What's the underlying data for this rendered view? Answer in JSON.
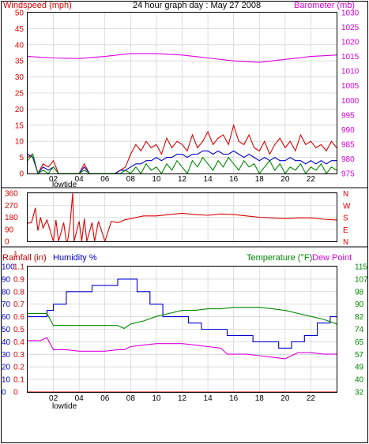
{
  "chart_data": [
    {
      "type": "line",
      "title": "24 hour graph day : May 27 2008",
      "left_axis_label": "Windspeed (mph)",
      "right_axis_label": "Barometer (mb)",
      "x_ticks": [
        "02",
        "04",
        "06",
        "08",
        "10",
        "12",
        "14",
        "16",
        "18",
        "20",
        "22"
      ],
      "x_annotation": "lowtide",
      "left_ylim": [
        0,
        50
      ],
      "left_ticks": [
        0,
        5,
        10,
        15,
        20,
        25,
        30,
        35,
        40,
        45,
        50
      ],
      "right_ylim": [
        975,
        1030
      ],
      "right_ticks": [
        975,
        980,
        985,
        990,
        995,
        1000,
        1005,
        1010,
        1015,
        1020,
        1025,
        1030
      ],
      "grid": true,
      "series": [
        {
          "name": "Barometer (mb)",
          "axis": "right",
          "color": "#dd00dd",
          "x": [
            0,
            2,
            4,
            6,
            8,
            10,
            12,
            14,
            16,
            18,
            20,
            22,
            24
          ],
          "values": [
            1015,
            1014.5,
            1014.3,
            1015,
            1016,
            1016,
            1015.5,
            1014.5,
            1013.5,
            1013,
            1014,
            1015,
            1015.5
          ]
        },
        {
          "name": "gust",
          "color": "#dd0000",
          "x": [
            0,
            0.4,
            0.8,
            1.2,
            1.6,
            2,
            2.4,
            2.8,
            3.2,
            3.6,
            4,
            4.4,
            4.8,
            5.2,
            5.6,
            6,
            6.4,
            6.8,
            7.2,
            7.6,
            8,
            8.4,
            8.8,
            9.2,
            9.6,
            10,
            10.4,
            10.8,
            11.2,
            11.6,
            12,
            12.4,
            12.8,
            13.2,
            13.6,
            14,
            14.4,
            14.8,
            15.2,
            15.6,
            16,
            16.4,
            16.8,
            17.2,
            17.6,
            18,
            18.4,
            18.8,
            19.2,
            19.6,
            20,
            20.4,
            20.8,
            21.2,
            21.6,
            22,
            22.4,
            22.8,
            23.2,
            23.6,
            24
          ],
          "values": [
            5,
            6,
            0,
            3,
            2,
            4,
            0,
            0,
            0,
            0,
            0,
            3,
            0,
            0,
            0,
            0,
            0,
            0,
            1,
            2,
            6,
            9,
            7,
            10,
            8,
            9,
            6,
            11,
            8,
            10,
            9,
            7,
            12,
            8,
            10,
            13,
            9,
            11,
            12,
            9,
            15,
            10,
            9,
            12,
            8,
            7,
            10,
            6,
            9,
            11,
            8,
            10,
            7,
            12,
            9,
            10,
            8,
            9,
            7,
            10,
            8
          ]
        },
        {
          "name": "wind",
          "color": "#0000cc",
          "x": [
            0,
            0.4,
            0.8,
            1.2,
            1.6,
            2,
            2.4,
            2.8,
            3.2,
            3.6,
            4,
            4.4,
            4.8,
            5.2,
            5.6,
            6,
            6.4,
            6.8,
            7.2,
            7.6,
            8,
            8.4,
            8.8,
            9.2,
            9.6,
            10,
            10.4,
            10.8,
            11.2,
            11.6,
            12,
            12.4,
            12.8,
            13.2,
            13.6,
            14,
            14.4,
            14.8,
            15.2,
            15.6,
            16,
            16.4,
            16.8,
            17.2,
            17.6,
            18,
            18.4,
            18.8,
            19.2,
            19.6,
            20,
            20.4,
            20.8,
            21.2,
            21.6,
            22,
            22.4,
            22.8,
            23.2,
            23.6,
            24
          ],
          "values": [
            6,
            5,
            0,
            2,
            1,
            2,
            0,
            0,
            0,
            0,
            0,
            2,
            0,
            0,
            0,
            0,
            0,
            0,
            1,
            1,
            2,
            3,
            3,
            4,
            4,
            5,
            4,
            5,
            5,
            6,
            6,
            5,
            6,
            6,
            7,
            7,
            6,
            7,
            6,
            6,
            7,
            6,
            5,
            6,
            5,
            4,
            5,
            4,
            5,
            4,
            4,
            5,
            4,
            4,
            3,
            4,
            3,
            4,
            3,
            4,
            4
          ]
        },
        {
          "name": "wind-min",
          "color": "#008800",
          "x": [
            0,
            0.4,
            0.8,
            1.2,
            1.6,
            2,
            2.4,
            2.8,
            3.2,
            3.6,
            4,
            4.4,
            4.8,
            5.2,
            5.6,
            6,
            6.4,
            6.8,
            7.2,
            7.6,
            8,
            8.4,
            8.8,
            9.2,
            9.6,
            10,
            10.4,
            10.8,
            11.2,
            11.6,
            12,
            12.4,
            12.8,
            13.2,
            13.6,
            14,
            14.4,
            14.8,
            15.2,
            15.6,
            16,
            16.4,
            16.8,
            17.2,
            17.6,
            18,
            18.4,
            18.8,
            19.2,
            19.6,
            20,
            20.4,
            20.8,
            21.2,
            21.6,
            22,
            22.4,
            22.8,
            23.2,
            23.6,
            24
          ],
          "values": [
            4,
            6,
            0,
            1,
            0,
            2,
            0,
            0,
            0,
            0,
            0,
            1,
            0,
            0,
            0,
            0,
            0,
            0,
            0,
            1,
            0,
            2,
            0,
            3,
            1,
            2,
            0,
            3,
            1,
            4,
            2,
            0,
            4,
            2,
            5,
            3,
            1,
            4,
            2,
            5,
            3,
            1,
            4,
            2,
            3,
            0,
            2,
            4,
            1,
            3,
            0,
            2,
            1,
            3,
            0,
            2,
            1,
            3,
            0,
            2,
            1
          ]
        }
      ]
    },
    {
      "type": "line",
      "left_ylim": [
        0,
        360
      ],
      "left_ticks": [
        0,
        90,
        180,
        270,
        360
      ],
      "direction_letters": [
        "N",
        "W",
        "S",
        "E",
        "N"
      ],
      "grid": true,
      "series": [
        {
          "name": "Wind Direction",
          "color": "#dd0000",
          "x": [
            0,
            0.3,
            0.6,
            0.7,
            0.8,
            1.0,
            1.2,
            1.5,
            2,
            2.2,
            2.4,
            2.8,
            3,
            3.1,
            3.3,
            3.5,
            3.6,
            4,
            4.2,
            4.4,
            4.6,
            5,
            5.2,
            5.5,
            6,
            6.5,
            7,
            7.3,
            7.5,
            8,
            9,
            10,
            11,
            12,
            13,
            14,
            15,
            16,
            17,
            18,
            19,
            20,
            21,
            22,
            23,
            24
          ],
          "values": [
            135,
            140,
            250,
            160,
            80,
            180,
            100,
            160,
            0,
            160,
            0,
            140,
            0,
            0,
            140,
            360,
            0,
            150,
            0,
            170,
            0,
            140,
            0,
            150,
            0,
            150,
            140,
            150,
            160,
            170,
            190,
            190,
            200,
            210,
            200,
            195,
            205,
            200,
            190,
            180,
            175,
            170,
            175,
            175,
            165,
            160
          ]
        }
      ]
    },
    {
      "type": "line",
      "rainfall_label": "Rainfall (in)",
      "humidity_label": "Humidity %",
      "temperature_label": "Temperature (°F)",
      "dewpoint_label": "Dew Point",
      "x_ticks": [
        "02",
        "04",
        "06",
        "08",
        "10",
        "12",
        "14",
        "16",
        "18",
        "20",
        "22"
      ],
      "x_annotation": "lowtide",
      "humidity_ticks": [
        0,
        10,
        20,
        30,
        40,
        50,
        60,
        70,
        80,
        90,
        100
      ],
      "rainfall_ticks": [
        0.0,
        0.1,
        0.2,
        0.3,
        0.4,
        0.5,
        0.6,
        0.7,
        0.8,
        0.9,
        1.1,
        1
      ],
      "temperature_ticks": [
        32,
        40,
        49,
        57,
        65,
        74,
        82,
        90,
        98,
        107,
        115
      ],
      "grid": true,
      "series": [
        {
          "name": "Humidity %",
          "axis": "humidity",
          "color": "#0000cc",
          "x": [
            0,
            1,
            1.5,
            2,
            3,
            4,
            5,
            6,
            7,
            7.8,
            8.5,
            9.5,
            10.5,
            11.5,
            12.5,
            13.5,
            14.5,
            15.5,
            16.5,
            17.5,
            18.5,
            19.5,
            20.5,
            21.5,
            22.5,
            23.5,
            24
          ],
          "values": [
            60,
            60,
            65,
            70,
            80,
            80,
            85,
            85,
            90,
            90,
            80,
            70,
            60,
            60,
            55,
            50,
            50,
            45,
            45,
            40,
            40,
            35,
            40,
            45,
            55,
            60,
            60
          ]
        },
        {
          "name": "Temperature (°F)",
          "axis": "temperature",
          "color": "#008800",
          "x": [
            0,
            1.5,
            2,
            3,
            4,
            5,
            6,
            7,
            7.5,
            8,
            9,
            10,
            11,
            12,
            13,
            14,
            15,
            16,
            17,
            18,
            19,
            20,
            21,
            22,
            23,
            24
          ],
          "values": [
            84,
            84,
            76,
            76,
            76,
            76,
            76,
            76,
            74,
            77,
            79,
            82,
            84,
            86,
            86,
            87,
            87,
            88,
            88,
            88,
            87,
            86,
            84,
            82,
            80,
            77
          ]
        },
        {
          "name": "Dew Point",
          "axis": "temperature",
          "color": "#dd00dd",
          "x": [
            0,
            1,
            1.5,
            2,
            3,
            4,
            5,
            6,
            7,
            7.5,
            8,
            9,
            10,
            11,
            12,
            13,
            14,
            15,
            15.5,
            16,
            17,
            18,
            19,
            20,
            21,
            22,
            23,
            24
          ],
          "values": [
            66,
            66,
            68,
            60,
            60,
            59,
            59,
            59,
            60,
            60,
            62,
            63,
            64,
            64,
            64,
            63,
            62,
            61,
            57,
            57,
            57,
            56,
            55,
            54,
            58,
            58,
            57,
            57
          ]
        },
        {
          "name": "Rainfall (in)",
          "axis": "rainfall",
          "color": "#dd0000",
          "x": [
            0,
            24
          ],
          "values": [
            0,
            0
          ]
        }
      ]
    }
  ]
}
